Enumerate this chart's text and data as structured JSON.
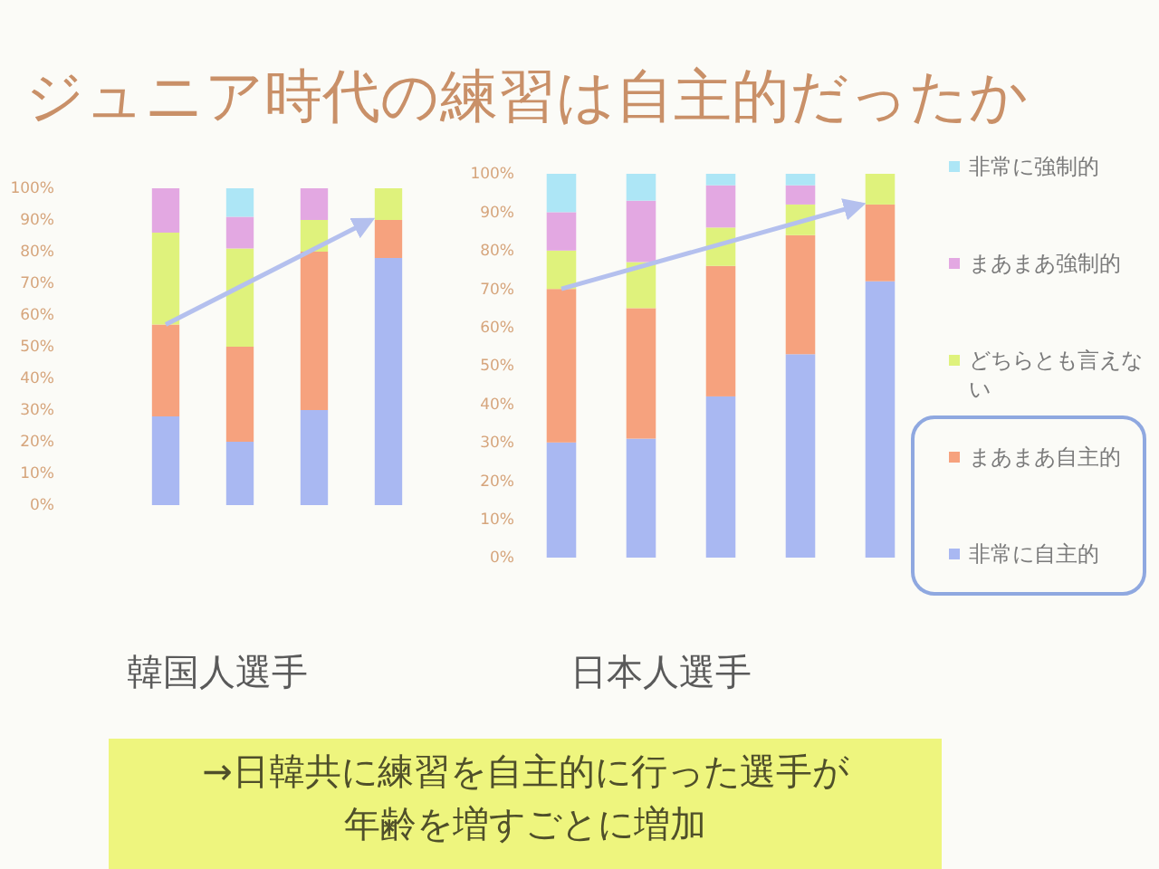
{
  "chart_data": [
    {
      "type": "bar",
      "title": "ジュニア時代の練習は自主的だったか",
      "xlabel": "韓国人選手",
      "stacked": true,
      "categories": [
        null,
        null,
        null,
        null
      ],
      "series": [
        {
          "color": "#a9b8f2",
          "values": [
            28,
            20,
            30,
            78
          ]
        },
        {
          "color": "#f6a27e",
          "values": [
            29,
            30,
            50,
            12
          ]
        },
        {
          "color": "#dff27c",
          "values": [
            29,
            31,
            10,
            10
          ]
        },
        {
          "color": "#e3a8e2",
          "values": [
            14,
            10,
            10,
            null
          ]
        },
        {
          "color": "#ade6f6",
          "values": [
            null,
            9,
            null,
            null
          ]
        }
      ],
      "ylim": [
        0,
        100
      ],
      "yticks": [
        {
          "value": 0,
          "label": "0%"
        },
        {
          "value": 10,
          "label": "10%"
        },
        {
          "value": 20,
          "label": "20%"
        },
        {
          "value": 30,
          "label": "30%"
        },
        {
          "value": 40,
          "label": "40%"
        },
        {
          "value": 50,
          "label": "50%"
        },
        {
          "value": 60,
          "label": "60%"
        },
        {
          "value": 70,
          "label": "70%"
        },
        {
          "value": 80,
          "label": "80%"
        },
        {
          "value": 90,
          "label": "90%"
        },
        {
          "value": 100,
          "label": "100%"
        }
      ],
      "legend": false,
      "annotations": [
        "→日韓共に練習を自主的に行った選手が年齢を増すごとに増加"
      ]
    },
    {
      "type": "bar",
      "xlabel": "日本人選手",
      "stacked": true,
      "categories": [
        null,
        null,
        null,
        null,
        null
      ],
      "series": [
        {
          "name": "非常に自主的",
          "color": "#a9b8f2",
          "values": [
            30,
            31,
            42,
            53,
            72
          ]
        },
        {
          "name": "まあまあ自主的",
          "color": "#f6a27e",
          "values": [
            40,
            34,
            34,
            31,
            20
          ]
        },
        {
          "name": "どちらとも言えない",
          "color": "#dff27c",
          "values": [
            10,
            12,
            10,
            8,
            8
          ]
        },
        {
          "name": "まあまあ強制的",
          "color": "#e3a8e2",
          "values": [
            10,
            16,
            11,
            5,
            null
          ]
        },
        {
          "name": "非常に強制的",
          "color": "#ade6f6",
          "values": [
            10,
            7,
            3,
            3,
            null
          ]
        }
      ],
      "ylim": [
        0,
        100
      ],
      "yticks": [
        {
          "value": 0,
          "label": "0%"
        },
        {
          "value": 10,
          "label": "10%"
        },
        {
          "value": 20,
          "label": "20%"
        },
        {
          "value": 30,
          "label": "30%"
        },
        {
          "value": 40,
          "label": "40%"
        },
        {
          "value": 50,
          "label": "50%"
        },
        {
          "value": 60,
          "label": "60%"
        },
        {
          "value": 70,
          "label": "70%"
        },
        {
          "value": 80,
          "label": "80%"
        },
        {
          "value": 90,
          "label": "90%"
        },
        {
          "value": 100,
          "label": "100%"
        }
      ],
      "legend": "right"
    }
  ]
}
